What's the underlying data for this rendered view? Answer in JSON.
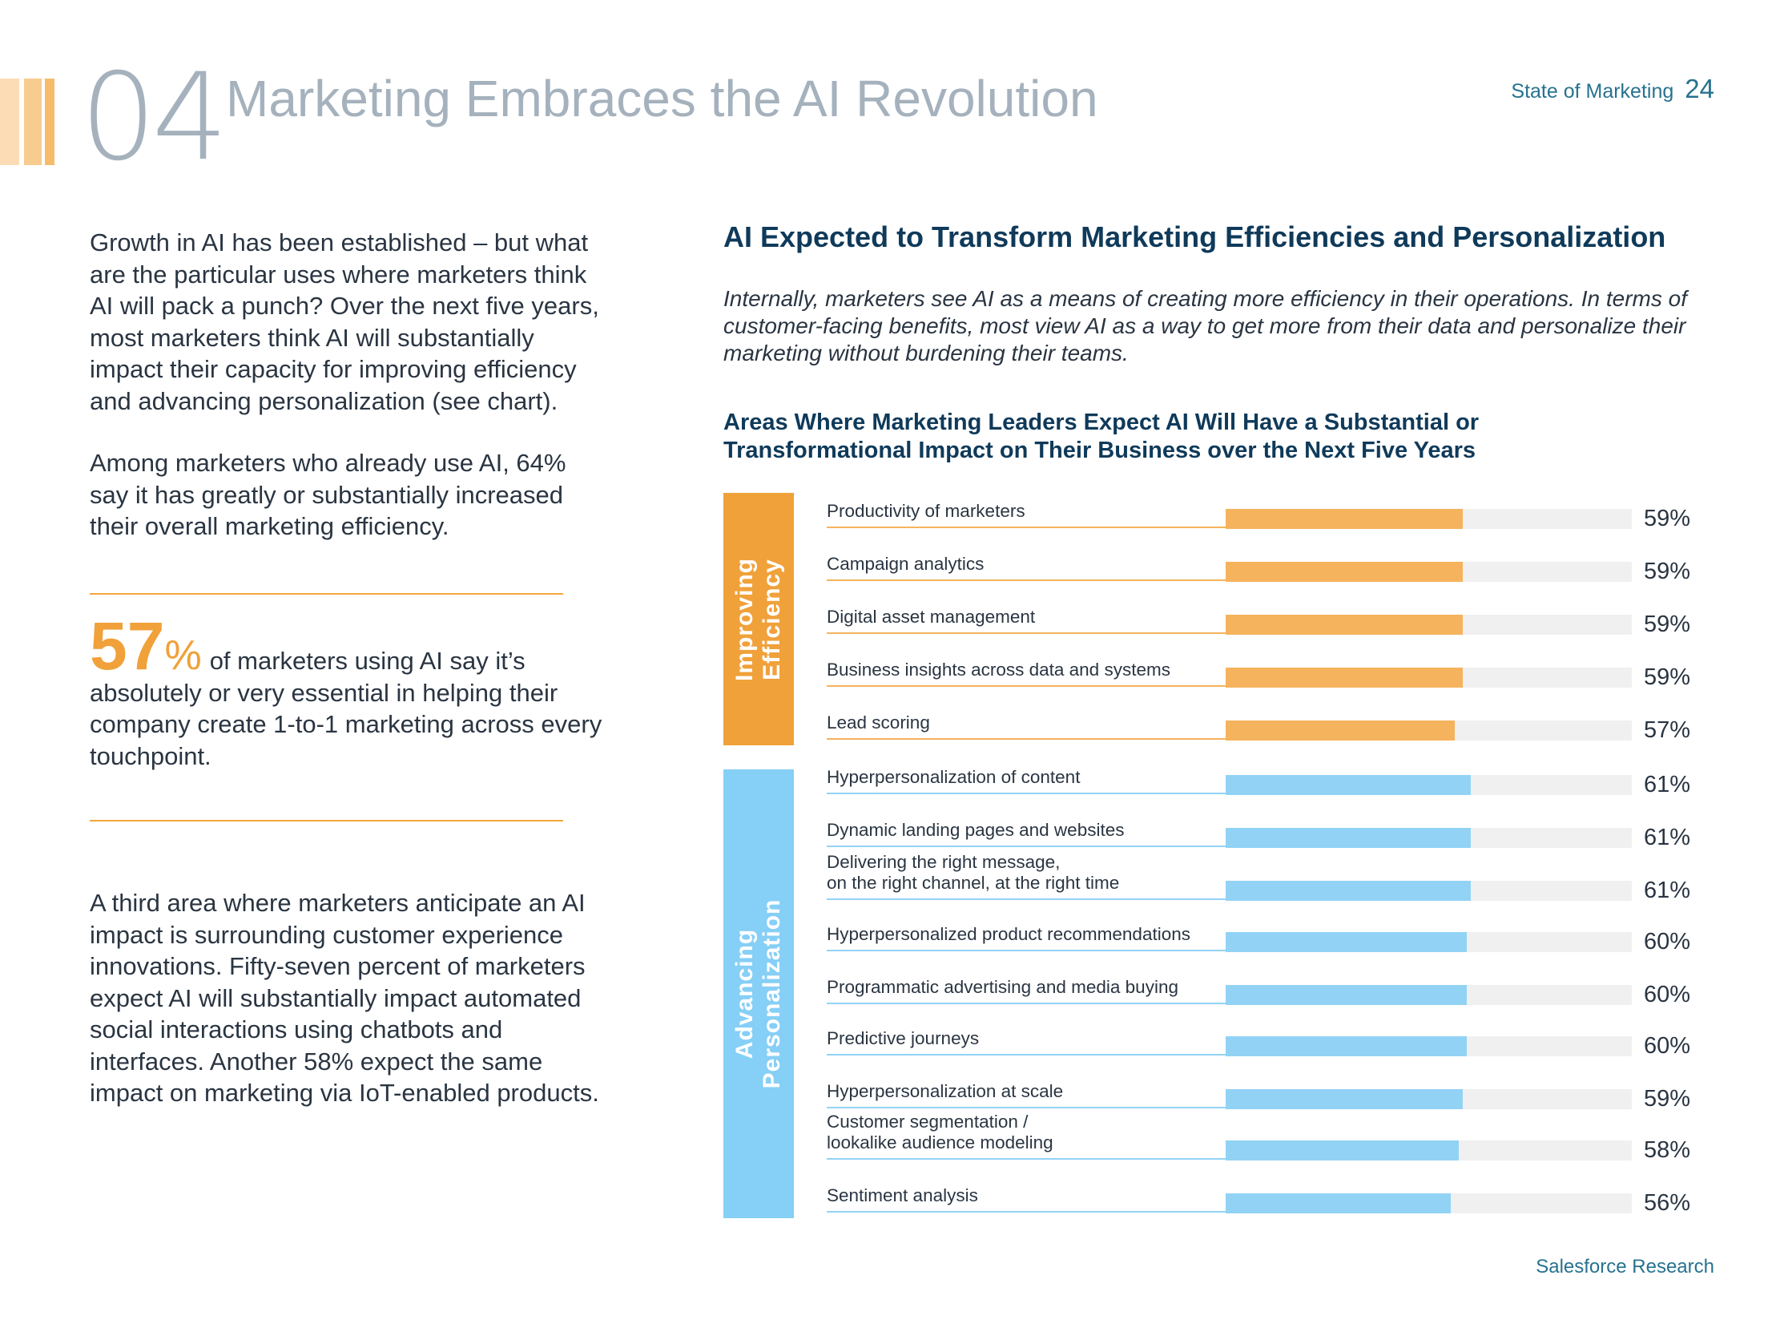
{
  "header": {
    "section_number": "04",
    "section_title": "Marketing Embraces the AI Revolution",
    "report_name": "State of Marketing",
    "page_number": "24"
  },
  "left": {
    "para1": "Growth in AI has been established – but what are the particular uses where marketers think AI will pack a punch? Over the next five years, most marketers think AI will substantially impact their capacity for improving efficiency and advancing personalization (see chart).",
    "para2": "Among marketers who already use AI, 64% say it has greatly or substantially increased their overall marketing efficiency.",
    "stat_number": "57",
    "stat_percent": "%",
    "stat_text": "of marketers using AI say it’s absolutely or very essential in helping their company create 1-to-1 marketing across every touchpoint.",
    "para3": "A third area where marketers anticipate an AI impact is surrounding customer experience innovations. Fifty-seven percent of marketers expect AI will substantially impact automated social interactions using chatbots and interfaces. Another 58% expect the same impact on marketing via IoT-enabled products."
  },
  "chart": {
    "heading": "AI Expected to Transform Marketing Efficiencies and Personalization",
    "description": "Internally, marketers see AI as a means of creating more efficiency in their operations. In terms of customer-facing benefits, most view AI as a way to get more from their data and personalize their marketing without burdening their teams.",
    "subtitle": "Areas Where Marketing Leaders Expect AI Will Have a Substantial or Transformational Impact on Their Business over the Next Five Years",
    "group_efficiency": "Improving\nEfficiency",
    "group_personalization": "Advancing\nPersonalization"
  },
  "chart_data": {
    "type": "bar",
    "orientation": "horizontal",
    "title": "Areas Where Marketing Leaders Expect AI Will Have a Substantial or Transformational Impact on Their Business over the Next Five Years",
    "xlim": [
      0,
      100
    ],
    "unit": "%",
    "groups": [
      {
        "name": "Improving Efficiency",
        "color": "#f5b35d",
        "group_color": "#f0a13a"
      },
      {
        "name": "Advancing Personalization",
        "color": "#92d3f5",
        "group_color": "#86cff6"
      }
    ],
    "categories": [
      "Productivity of marketers",
      "Campaign analytics",
      "Digital asset management",
      "Business insights across data and systems",
      "Lead scoring",
      "Hyperpersonalization of content",
      "Dynamic landing pages and websites",
      "Delivering the right message,\non the right channel, at the right time",
      "Hyperpersonalized product recommendations",
      "Programmatic advertising and media buying",
      "Predictive journeys",
      "Hyperpersonalization at scale",
      "Customer segmentation /\nlookalike audience modeling",
      "Sentiment analysis"
    ],
    "values": [
      59,
      59,
      59,
      59,
      57,
      61,
      61,
      61,
      60,
      60,
      60,
      59,
      58,
      56
    ],
    "value_labels": [
      "59%",
      "59%",
      "59%",
      "59%",
      "57%",
      "61%",
      "61%",
      "61%",
      "60%",
      "60%",
      "60%",
      "59%",
      "58%",
      "56%"
    ],
    "category_group": [
      0,
      0,
      0,
      0,
      0,
      1,
      1,
      1,
      1,
      1,
      1,
      1,
      1,
      1
    ]
  },
  "footer": {
    "source": "Salesforce Research"
  }
}
